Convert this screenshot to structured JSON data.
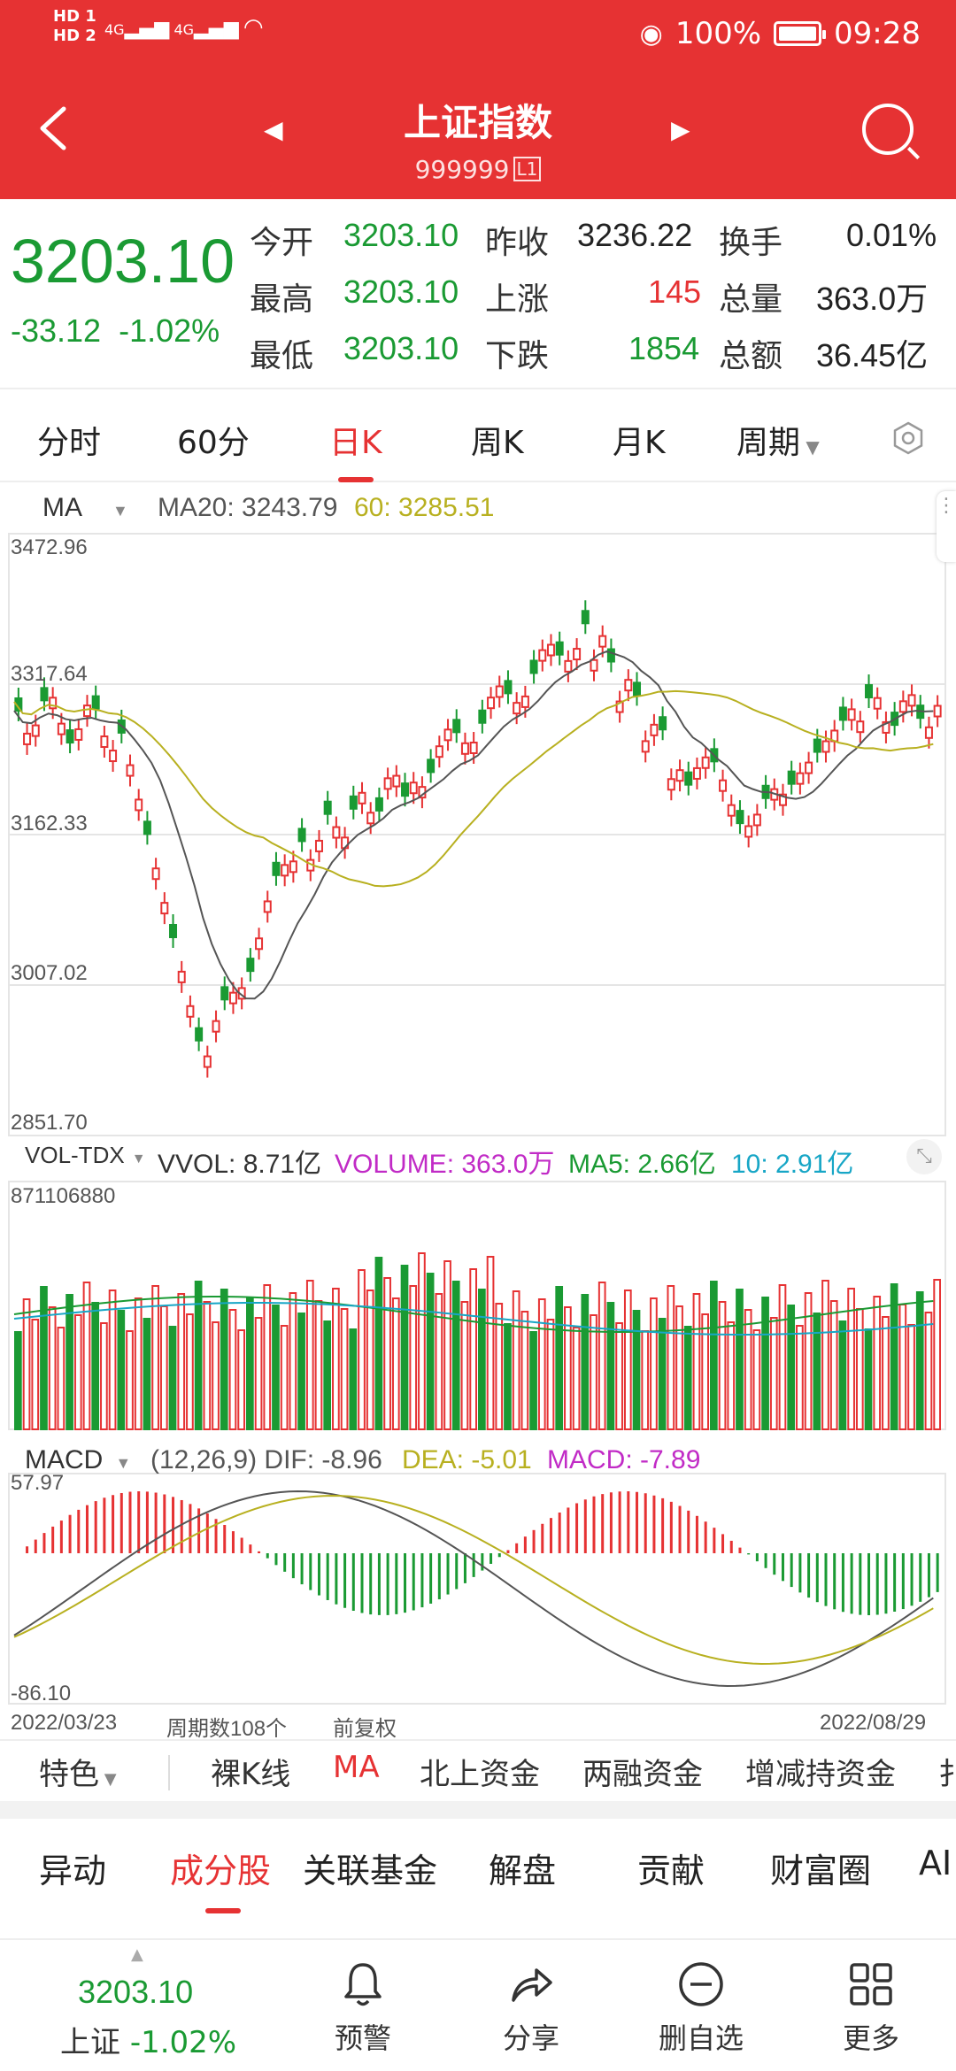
{
  "status_bar": {
    "sim1": "HD 1",
    "sim2": "HD 2",
    "signal": "4G",
    "battery": "100%",
    "time": "09:28"
  },
  "nav": {
    "title": "上证指数",
    "code": "999999",
    "code_badge": "L1"
  },
  "quote": {
    "price": "3203.10",
    "change": "-33.12",
    "change_pct": "-1.02%",
    "rows": [
      {
        "l1": "今开",
        "v1": "3203.10",
        "l2": "昨收",
        "v2": "3236.22",
        "l3": "换手",
        "v3": "0.01%"
      },
      {
        "l1": "最高",
        "v1": "3203.10",
        "l2": "上涨",
        "v2": "145",
        "l3": "总量",
        "v3": "363.0万"
      },
      {
        "l1": "最低",
        "v1": "3203.10",
        "l2": "下跌",
        "v2": "1854",
        "l3": "总额",
        "v3": "36.45亿"
      }
    ]
  },
  "tabs": [
    "分时",
    "60分",
    "日K",
    "周K",
    "月K",
    "周期"
  ],
  "active_tab": "日K",
  "ma_panel": {
    "name": "MA",
    "ma20": "MA20: 3243.79",
    "ma60": "60: 3285.51",
    "axis": [
      "3472.96",
      "3317.64",
      "3162.33",
      "3007.02",
      "2851.70"
    ]
  },
  "vol_panel": {
    "name": "VOL-TDX",
    "vvol": "VVOL: 8.71亿",
    "volume": "VOLUME: 363.0万",
    "ma5": "MA5: 2.66亿",
    "ma10": "10: 2.91亿",
    "axis_top": "871106880"
  },
  "macd_panel": {
    "name": "MACD",
    "params": "(12,26,9)",
    "dif": "DIF: -8.96",
    "dea": "DEA: -5.01",
    "macd": "MACD: -7.89",
    "axis_top": "57.97",
    "axis_bottom": "-86.10"
  },
  "date_axis": {
    "start": "2022/03/23",
    "count": "周期数108个",
    "adjust": "前复权",
    "end": "2022/08/29"
  },
  "tools": [
    "特色",
    "裸K线",
    "MA",
    "北上资金",
    "两融资金",
    "增减持资金",
    "扌"
  ],
  "sections": [
    "异动",
    "成分股",
    "关联基金",
    "解盘",
    "贡献",
    "财富圈",
    "AI"
  ],
  "active_section": "成分股",
  "bottom_bar": {
    "price": "3203.10",
    "name": "上证",
    "pct": "-1.02%",
    "items": [
      {
        "label": "预警",
        "icon": "bell-icon"
      },
      {
        "label": "分享",
        "icon": "share-icon"
      },
      {
        "label": "删自选",
        "icon": "remove-watchlist-icon"
      },
      {
        "label": "更多",
        "icon": "grid-icon"
      }
    ]
  },
  "colors": {
    "red": "#e63233",
    "green": "#1a9a33",
    "ma20": "#555555",
    "ma60": "#b8b020",
    "macd_magenta": "#c12bc6",
    "cyan": "#17a6c6"
  }
}
